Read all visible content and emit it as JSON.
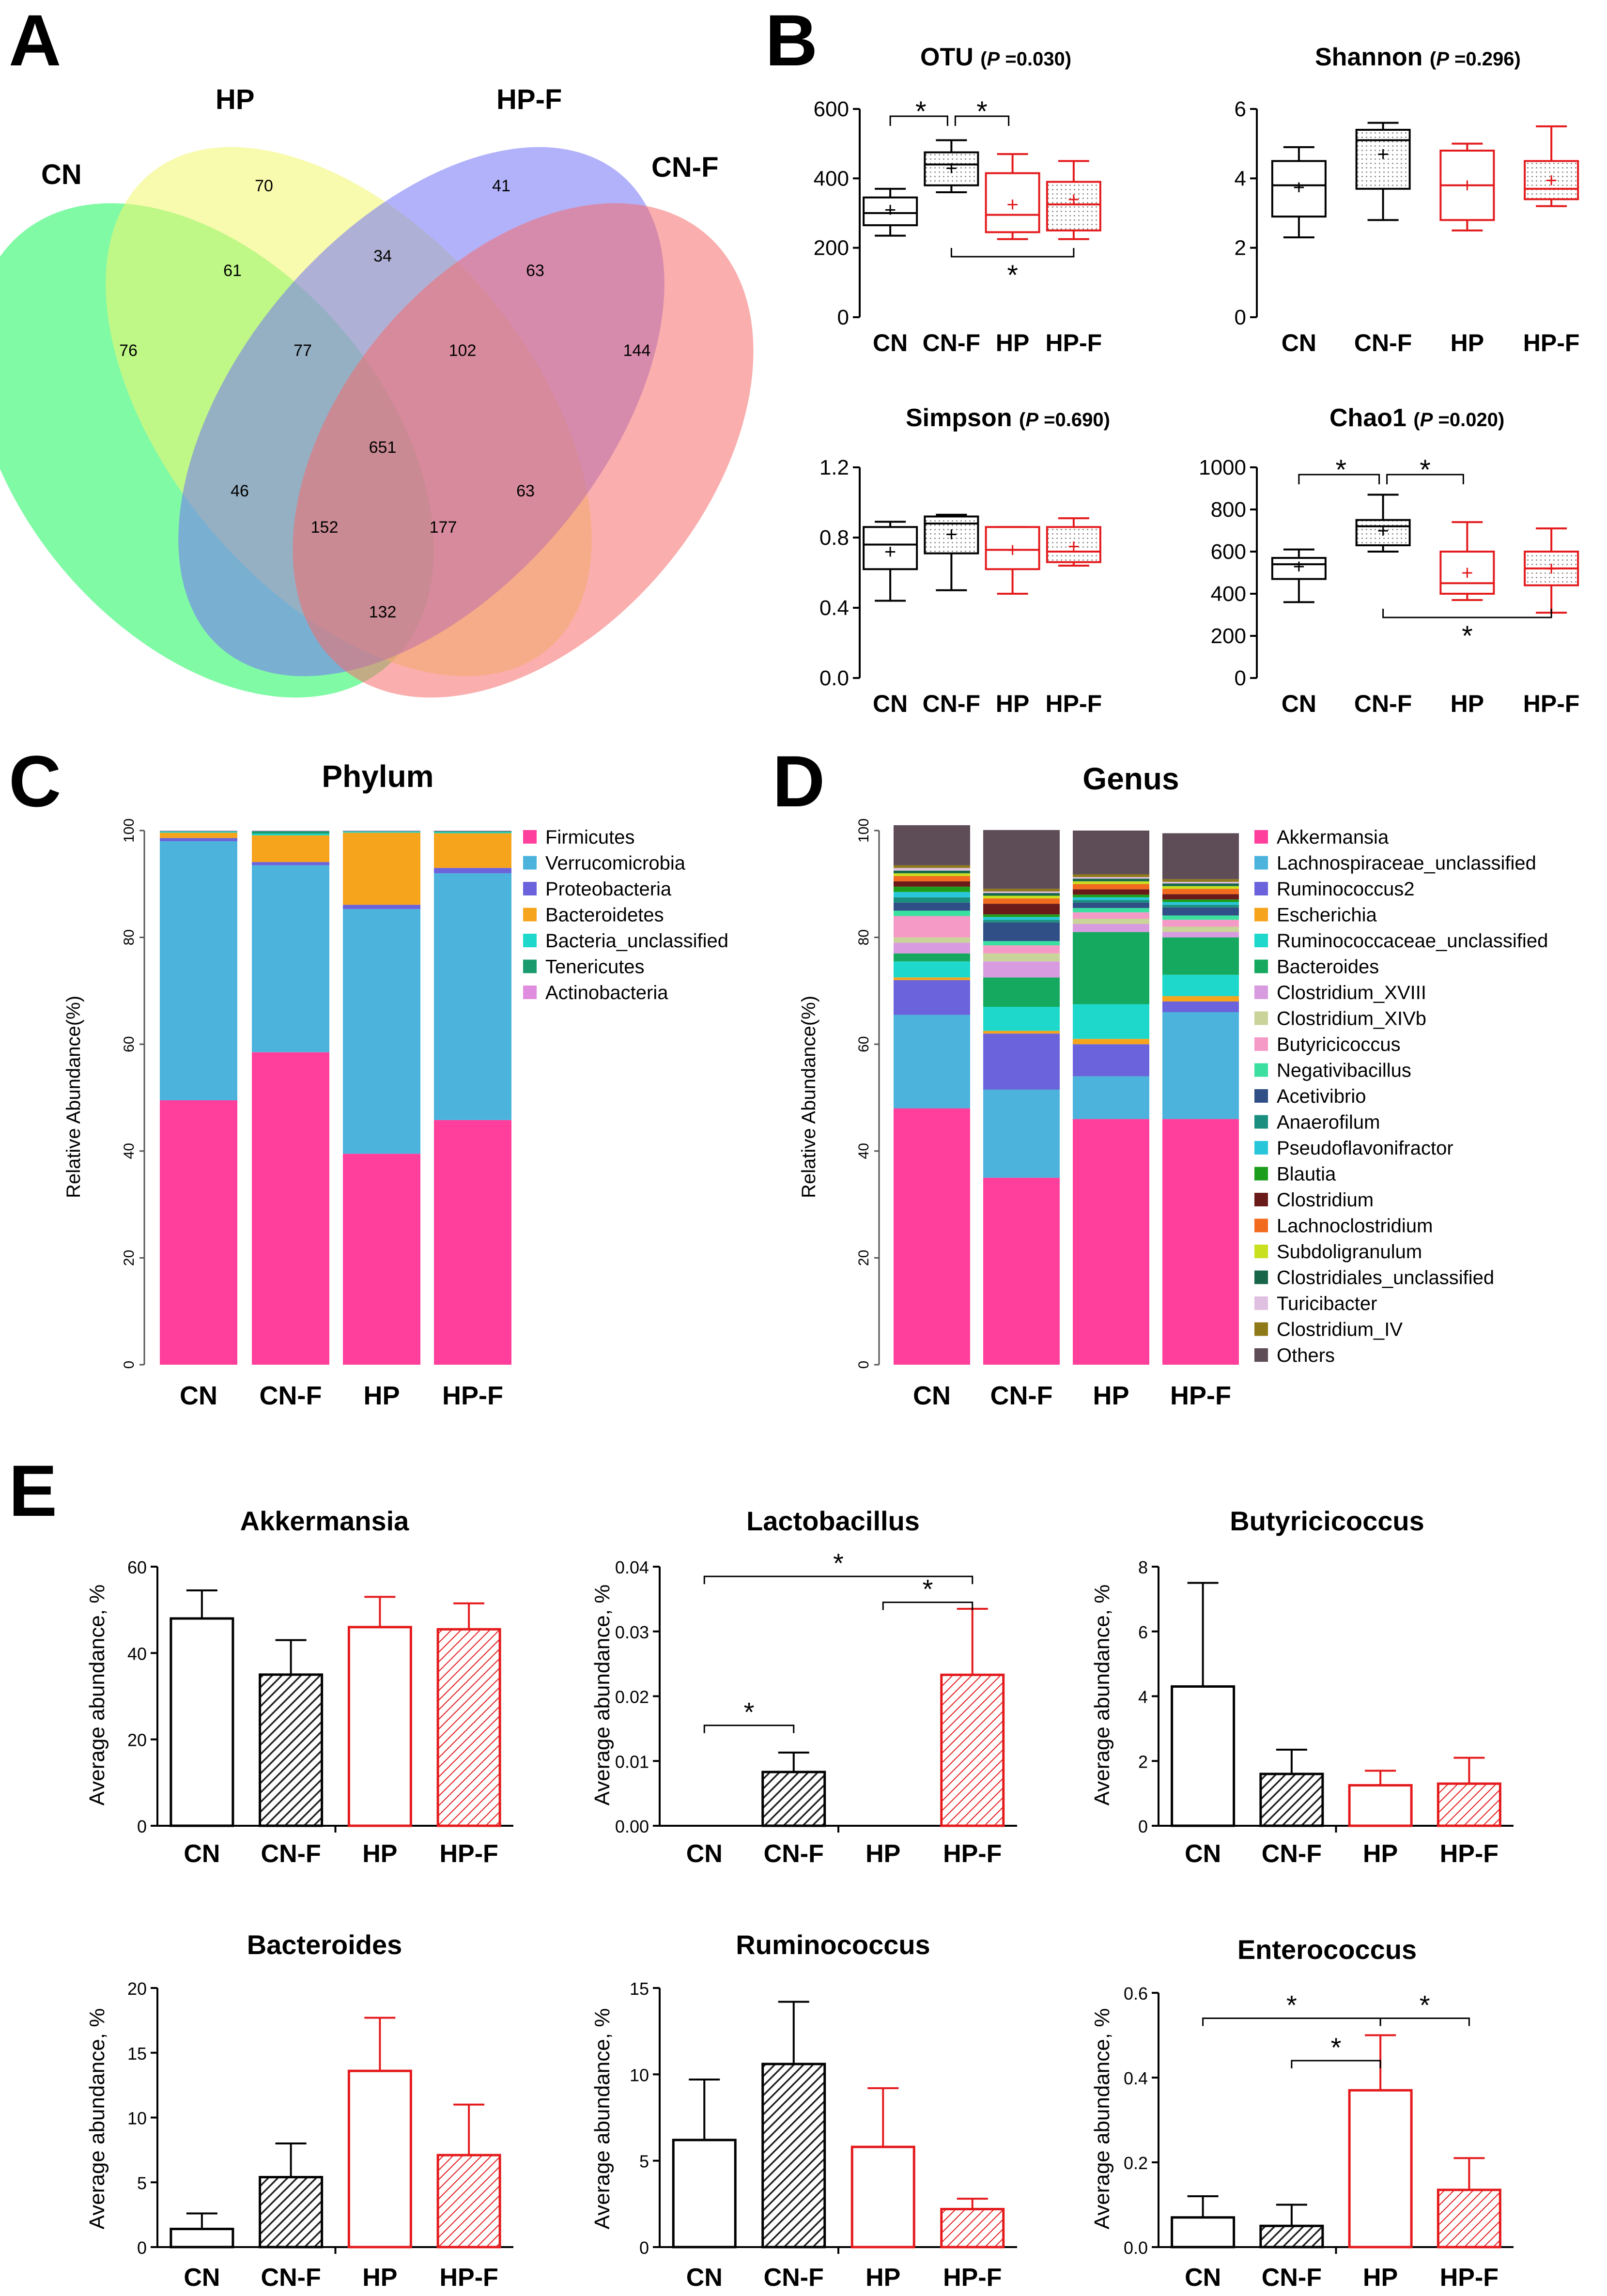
{
  "panel_labels": {
    "a": "A",
    "b": "B",
    "c": "C",
    "d": "D",
    "e": "E"
  },
  "venn": {
    "set_labels": [
      "CN",
      "HP",
      "HP-F",
      "CN-F"
    ],
    "colors": {
      "CN": "#19f55c",
      "HP": "#f3f56b",
      "HPF": "#7272f5",
      "CNF": "#f56b6b"
    },
    "regions": [
      {
        "label": "CN only",
        "value": "76"
      },
      {
        "label": "HP only",
        "value": "70"
      },
      {
        "label": "HP-F only",
        "value": "41"
      },
      {
        "label": "CN-F only",
        "value": "144"
      },
      {
        "label": "CN HP",
        "value": "61"
      },
      {
        "label": "HP HP-F",
        "value": "34"
      },
      {
        "label": "HP-F CN-F",
        "value": "63"
      },
      {
        "label": "CN HP HP-F",
        "value": "77"
      },
      {
        "label": "HP HP-F CN-F",
        "value": "102"
      },
      {
        "label": "all",
        "value": "651"
      },
      {
        "label": "CN HP-F",
        "value": "46"
      },
      {
        "label": "HP CN-F",
        "value": "63"
      },
      {
        "label": "CN HP-F CN-F",
        "value": "152"
      },
      {
        "label": "CN HP CN-F",
        "value": "177"
      },
      {
        "label": "CN CN-F",
        "value": "132"
      }
    ]
  },
  "chart_data": [
    {
      "type": "box",
      "panel": "B",
      "title": "OTU",
      "pvalue": "(P =0.030)",
      "p_letter": "P",
      "p_rest": " =0.030)",
      "categories": [
        "CN",
        "CN-F",
        "HP",
        "HP-F"
      ],
      "ylim": [
        0,
        600
      ],
      "yticks": [
        "0",
        "200",
        "400",
        "600"
      ],
      "boxes": [
        {
          "min": 235,
          "q1": 265,
          "median": 300,
          "q3": 345,
          "max": 370,
          "mean": 310,
          "color": "#000000",
          "dotted": false
        },
        {
          "min": 360,
          "q1": 380,
          "median": 440,
          "q3": 475,
          "max": 510,
          "mean": 430,
          "color": "#000000",
          "dotted": true
        },
        {
          "min": 225,
          "q1": 245,
          "median": 295,
          "q3": 415,
          "max": 470,
          "mean": 325,
          "color": "#e41a1c",
          "dotted": false
        },
        {
          "min": 225,
          "q1": 250,
          "median": 325,
          "q3": 390,
          "max": 450,
          "mean": 340,
          "color": "#e41a1c",
          "dotted": true
        }
      ],
      "sig": [
        {
          "from": 0,
          "to": 1,
          "side": "top",
          "label": "*"
        },
        {
          "from": 1,
          "to": 2,
          "side": "top",
          "label": "*"
        },
        {
          "from": 1,
          "to": 3,
          "side": "bottom",
          "label": "*"
        }
      ]
    },
    {
      "type": "box",
      "panel": "B",
      "title": "Shannon",
      "pvalue": "(P =0.296)",
      "p_letter": "P",
      "p_rest": " =0.296)",
      "categories": [
        "CN",
        "CN-F",
        "HP",
        "HP-F"
      ],
      "ylim": [
        0,
        6
      ],
      "yticks": [
        "0",
        "2",
        "4",
        "6"
      ],
      "boxes": [
        {
          "min": 2.3,
          "q1": 2.9,
          "median": 3.8,
          "q3": 4.5,
          "max": 4.9,
          "mean": 3.75,
          "color": "#000000",
          "dotted": false
        },
        {
          "min": 2.8,
          "q1": 3.7,
          "median": 5.1,
          "q3": 5.4,
          "max": 5.6,
          "mean": 4.7,
          "color": "#000000",
          "dotted": true
        },
        {
          "min": 2.5,
          "q1": 2.8,
          "median": 3.8,
          "q3": 4.8,
          "max": 5.0,
          "mean": 3.8,
          "color": "#e41a1c",
          "dotted": false
        },
        {
          "min": 3.2,
          "q1": 3.4,
          "median": 3.7,
          "q3": 4.5,
          "max": 5.5,
          "mean": 3.95,
          "color": "#e41a1c",
          "dotted": true
        }
      ],
      "sig": []
    },
    {
      "type": "box",
      "panel": "B",
      "title": "Simpson",
      "pvalue": "(P =0.690)",
      "p_letter": "P",
      "p_rest": " =0.690)",
      "categories": [
        "CN",
        "CN-F",
        "HP",
        "HP-F"
      ],
      "ylim": [
        0,
        1.2
      ],
      "yticks": [
        "0.0",
        "0.4",
        "0.8",
        "1.2"
      ],
      "boxes": [
        {
          "min": 0.44,
          "q1": 0.62,
          "median": 0.76,
          "q3": 0.86,
          "max": 0.89,
          "mean": 0.72,
          "color": "#000000",
          "dotted": false
        },
        {
          "min": 0.5,
          "q1": 0.71,
          "median": 0.88,
          "q3": 0.92,
          "max": 0.93,
          "mean": 0.82,
          "color": "#000000",
          "dotted": true
        },
        {
          "min": 0.48,
          "q1": 0.62,
          "median": 0.73,
          "q3": 0.86,
          "max": 0.86,
          "mean": 0.73,
          "color": "#e41a1c",
          "dotted": false
        },
        {
          "min": 0.64,
          "q1": 0.66,
          "median": 0.72,
          "q3": 0.86,
          "max": 0.91,
          "mean": 0.75,
          "color": "#e41a1c",
          "dotted": true
        }
      ],
      "sig": []
    },
    {
      "type": "box",
      "panel": "B",
      "title": "Chao1",
      "pvalue": "(P =0.020)",
      "p_letter": "P",
      "p_rest": " =0.020)",
      "categories": [
        "CN",
        "CN-F",
        "HP",
        "HP-F"
      ],
      "ylim": [
        0,
        1000
      ],
      "yticks": [
        "0",
        "200",
        "400",
        "600",
        "800",
        "1000"
      ],
      "boxes": [
        {
          "min": 360,
          "q1": 470,
          "median": 540,
          "q3": 570,
          "max": 610,
          "mean": 530,
          "color": "#000000",
          "dotted": false
        },
        {
          "min": 600,
          "q1": 630,
          "median": 720,
          "q3": 750,
          "max": 870,
          "mean": 700,
          "color": "#000000",
          "dotted": true
        },
        {
          "min": 370,
          "q1": 400,
          "median": 450,
          "q3": 600,
          "max": 740,
          "mean": 500,
          "color": "#e41a1c",
          "dotted": false
        },
        {
          "min": 310,
          "q1": 440,
          "median": 520,
          "q3": 600,
          "max": 710,
          "mean": 520,
          "color": "#e41a1c",
          "dotted": true
        }
      ],
      "sig": [
        {
          "from": 0,
          "to": 1,
          "side": "top",
          "label": "*"
        },
        {
          "from": 1,
          "to": 2,
          "side": "top",
          "label": "*"
        },
        {
          "from": 1,
          "to": 3,
          "side": "bottom",
          "label": "*"
        }
      ]
    },
    {
      "type": "stacked_bar",
      "panel": "C",
      "title": "Phylum",
      "ylabel": "Relative Abundance(%)",
      "categories": [
        "CN",
        "CN-F",
        "HP",
        "HP-F"
      ],
      "ylim": [
        0,
        100
      ],
      "yticks": [
        "0",
        "20",
        "40",
        "60",
        "80",
        "100"
      ],
      "series": [
        {
          "name": "Firmicutes",
          "color": "#ff3f9b",
          "values": [
            49.5,
            58.5,
            39.5,
            45.8
          ]
        },
        {
          "name": "Verrucomicrobia",
          "color": "#4cb3dd",
          "values": [
            48.5,
            35.0,
            45.8,
            46.2
          ]
        },
        {
          "name": "Proteobacteria",
          "color": "#6b63db",
          "values": [
            0.6,
            0.6,
            0.8,
            1.0
          ]
        },
        {
          "name": "Bacteroidetes",
          "color": "#f7a41d",
          "values": [
            1.0,
            5.0,
            13.5,
            6.5
          ]
        },
        {
          "name": "Bacteria_unclassified",
          "color": "#1ed9cb",
          "values": [
            0.2,
            0.3,
            0.2,
            0.2
          ]
        },
        {
          "name": "Tenericutes",
          "color": "#1a9b6e",
          "values": [
            0.1,
            0.5,
            0.1,
            0.2
          ]
        },
        {
          "name": "Actinobacteria",
          "color": "#e08de0",
          "values": [
            0.1,
            0.1,
            0.1,
            0.1
          ]
        }
      ]
    },
    {
      "type": "stacked_bar",
      "panel": "D",
      "title": "Genus",
      "ylabel": "Relative Abundance(%)",
      "categories": [
        "CN",
        "CN-F",
        "HP",
        "HP-F"
      ],
      "ylim": [
        0,
        100
      ],
      "yticks": [
        "0",
        "20",
        "40",
        "60",
        "80",
        "100"
      ],
      "series": [
        {
          "name": "Akkermansia",
          "color": "#ff3f9b",
          "values": [
            48,
            35,
            46,
            46
          ]
        },
        {
          "name": "Lachnospiraceae_unclassified",
          "color": "#4cb3dd",
          "values": [
            17.5,
            16.5,
            8,
            20
          ]
        },
        {
          "name": "Ruminococcus2",
          "color": "#6b63db",
          "values": [
            6.5,
            10.5,
            6,
            2
          ]
        },
        {
          "name": "Escherichia",
          "color": "#f7a41d",
          "values": [
            0.5,
            0.5,
            1,
            1
          ]
        },
        {
          "name": "Ruminococcaceae_unclassified",
          "color": "#1ed9cb",
          "values": [
            3,
            4.5,
            6.5,
            4
          ]
        },
        {
          "name": "Bacteroides",
          "color": "#15a85f",
          "values": [
            1.5,
            5.5,
            13.5,
            7
          ]
        },
        {
          "name": "Clostridium_XVIII",
          "color": "#d89be0",
          "values": [
            2,
            3,
            1.5,
            1
          ]
        },
        {
          "name": "Clostridium_XIVb",
          "color": "#c9d39a",
          "values": [
            1,
            1.5,
            1,
            1
          ]
        },
        {
          "name": "Butyricicoccus",
          "color": "#f59ac6",
          "values": [
            4,
            1.5,
            1.2,
            1.3
          ]
        },
        {
          "name": "Negativibacillus",
          "color": "#3be0a0",
          "values": [
            1,
            0.8,
            0.8,
            0.8
          ]
        },
        {
          "name": "Acetivibrio",
          "color": "#2f4f86",
          "values": [
            1.5,
            3.5,
            1,
            1.5
          ]
        },
        {
          "name": "Anaerofilum",
          "color": "#1a8f80",
          "values": [
            1,
            0.5,
            0.5,
            0.5
          ]
        },
        {
          "name": "Pseudoflavonifractor",
          "color": "#27c7d9",
          "values": [
            1,
            0.5,
            0.5,
            0.5
          ]
        },
        {
          "name": "Blautia",
          "color": "#1c9e1c",
          "values": [
            1,
            0.5,
            0.5,
            0.5
          ]
        },
        {
          "name": "Clostridium",
          "color": "#6b1a1a",
          "values": [
            1,
            2,
            1,
            1
          ]
        },
        {
          "name": "Lachnoclostridium",
          "color": "#f26a1e",
          "values": [
            1,
            1,
            1,
            1
          ]
        },
        {
          "name": "Subdoligranulum",
          "color": "#c8e01e",
          "values": [
            0.5,
            0.5,
            0.5,
            0.5
          ]
        },
        {
          "name": "Clostridiales_unclassified",
          "color": "#17664a",
          "values": [
            0.5,
            0.5,
            0.5,
            0.5
          ]
        },
        {
          "name": "Turicibacter",
          "color": "#e0c0e0",
          "values": [
            0.5,
            0.3,
            0.3,
            0.3
          ]
        },
        {
          "name": "Clostridium_IV",
          "color": "#8f7a1a",
          "values": [
            0.5,
            0.5,
            0.5,
            0.5
          ]
        },
        {
          "name": "Others",
          "color": "#5e4c57",
          "values": [
            7.5,
            11,
            8.2,
            8.6
          ]
        }
      ]
    },
    {
      "type": "bar",
      "panel": "E",
      "title": "Akkermansia",
      "ylabel": "Average abundance, %",
      "categories": [
        "CN",
        "CN-F",
        "HP",
        "HP-F"
      ],
      "ylim": [
        0,
        60
      ],
      "yticks": [
        "0",
        "20",
        "40",
        "60"
      ],
      "values": [
        48,
        35,
        46,
        45.5
      ],
      "errors": [
        6.5,
        8,
        7,
        6
      ],
      "sig": []
    },
    {
      "type": "bar",
      "panel": "E",
      "title": "Lactobacillus",
      "ylabel": "Average abundance, %",
      "categories": [
        "CN",
        "CN-F",
        "HP",
        "HP-F"
      ],
      "ylim": [
        0,
        0.04
      ],
      "yticks": [
        "0.00",
        "0.01",
        "0.02",
        "0.03",
        "0.04"
      ],
      "values": [
        0,
        0.0083,
        0,
        0.0233
      ],
      "errors": [
        0,
        0.003,
        0,
        0.0102
      ],
      "sig": [
        {
          "from": 0,
          "to": 1,
          "label": "*",
          "y": 0.0155
        },
        {
          "from": 2,
          "to": 3,
          "label": "*",
          "y": 0.0345
        },
        {
          "from": 0,
          "to": 3,
          "label": "*",
          "y": 0.0385
        }
      ]
    },
    {
      "type": "bar",
      "panel": "E",
      "title": "Butyricicoccus",
      "ylabel": "Average abundance, %",
      "categories": [
        "CN",
        "CN-F",
        "HP",
        "HP-F"
      ],
      "ylim": [
        0,
        8
      ],
      "yticks": [
        "0",
        "2",
        "4",
        "6",
        "8"
      ],
      "values": [
        4.3,
        1.6,
        1.25,
        1.3
      ],
      "errors": [
        3.2,
        0.75,
        0.45,
        0.8
      ],
      "sig": []
    },
    {
      "type": "bar",
      "panel": "E",
      "title": "Bacteroides",
      "ylabel": "Average abundance, %",
      "categories": [
        "CN",
        "CN-F",
        "HP",
        "HP-F"
      ],
      "ylim": [
        0,
        20
      ],
      "yticks": [
        "0",
        "5",
        "10",
        "15",
        "20"
      ],
      "values": [
        1.4,
        5.4,
        13.6,
        7.1
      ],
      "errors": [
        1.2,
        2.6,
        4.1,
        3.9
      ],
      "sig": []
    },
    {
      "type": "bar",
      "panel": "E",
      "title": "Ruminococcus",
      "ylabel": "Average abundance, %",
      "categories": [
        "CN",
        "CN-F",
        "HP",
        "HP-F"
      ],
      "ylim": [
        0,
        15
      ],
      "yticks": [
        "0",
        "5",
        "10",
        "15"
      ],
      "values": [
        6.2,
        10.6,
        5.8,
        2.2
      ],
      "errors": [
        3.5,
        3.6,
        3.4,
        0.6
      ],
      "sig": []
    },
    {
      "type": "bar",
      "panel": "E",
      "title": "Enterococcus",
      "ylabel": "Average abundance, %",
      "categories": [
        "CN",
        "CN-F",
        "HP",
        "HP-F"
      ],
      "ylim": [
        0,
        0.6
      ],
      "yticks": [
        "0.0",
        "0.2",
        "0.4",
        "0.6"
      ],
      "values": [
        0.07,
        0.05,
        0.37,
        0.135
      ],
      "errors": [
        0.05,
        0.05,
        0.13,
        0.075
      ],
      "sig": [
        {
          "from": 1,
          "to": 2,
          "label": "*",
          "y": 0.44
        },
        {
          "from": 0,
          "to": 2,
          "label": "*",
          "y": 0.54
        },
        {
          "from": 2,
          "to": 3,
          "label": "*",
          "y": 0.54
        }
      ]
    }
  ]
}
